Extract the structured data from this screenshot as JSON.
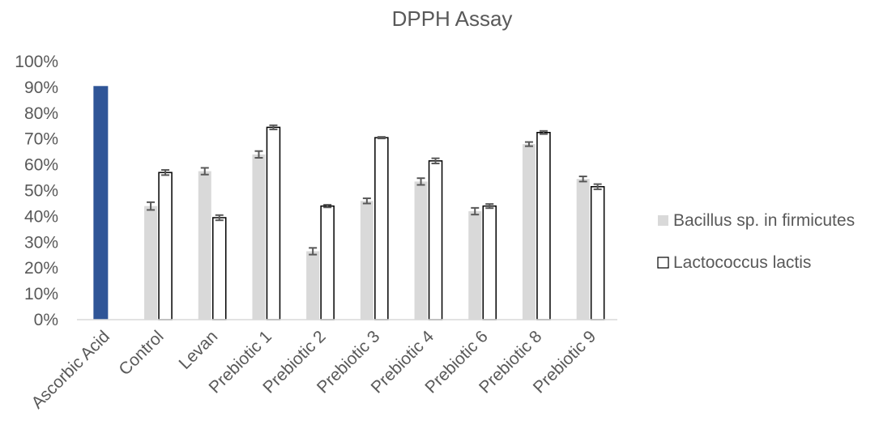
{
  "chart_data": {
    "type": "bar",
    "title": "DPPH Assay",
    "xlabel": "",
    "ylabel": "",
    "ylim": [
      0,
      1
    ],
    "y_tick_format": "percent",
    "y_ticks": [
      "0%",
      "10%",
      "20%",
      "30%",
      "40%",
      "50%",
      "60%",
      "70%",
      "80%",
      "90%",
      "100%"
    ],
    "grid": false,
    "legend_position": "right",
    "categories": [
      "Ascorbic Acid",
      "Control",
      "Levan",
      "Prebiotic 1",
      "Prebiotic 2",
      "Prebiotic 3",
      "Prebiotic 4",
      "Prebiotic 6",
      "Prebiotic 8",
      "Prebiotic 9"
    ],
    "reference": {
      "category": "Ascorbic Acid",
      "value": 0.905,
      "color": "#2f5597"
    },
    "series": [
      {
        "name": "Bacillus sp. in firmicutes",
        "color": "#d9d9d9",
        "values": [
          null,
          0.44,
          0.575,
          0.64,
          0.265,
          0.46,
          0.535,
          0.42,
          0.68,
          0.545
        ],
        "errors": [
          null,
          0.015,
          0.013,
          0.013,
          0.013,
          0.01,
          0.013,
          0.013,
          0.008,
          0.01
        ]
      },
      {
        "name": "Lactococcus lactis",
        "color": "#ffffff",
        "stroke": "#000000",
        "values": [
          null,
          0.57,
          0.395,
          0.745,
          0.44,
          0.705,
          0.615,
          0.44,
          0.725,
          0.515
        ],
        "errors": [
          null,
          0.01,
          0.01,
          0.008,
          0.005,
          0.003,
          0.01,
          0.008,
          0.006,
          0.01
        ]
      }
    ]
  }
}
